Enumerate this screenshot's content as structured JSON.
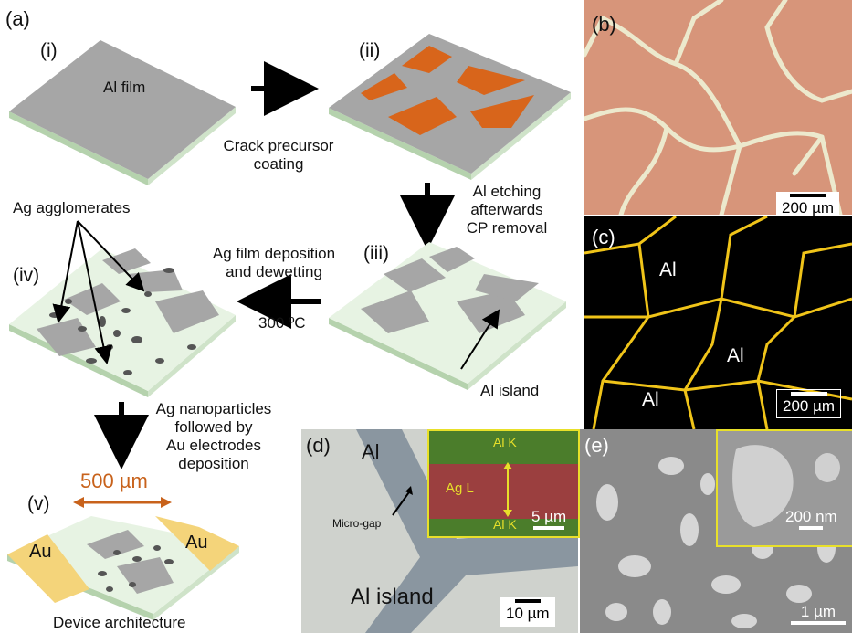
{
  "panel_a": {
    "tag": "(a)",
    "steps": {
      "i": "(i)",
      "ii": "(ii)",
      "iii": "(iii)",
      "iv": "(iv)",
      "v": "(v)"
    },
    "al_film": "Al film",
    "crack_precursor": [
      "Crack precursor",
      "coating"
    ],
    "al_etching": [
      "Al etching",
      "afterwards",
      "CP removal"
    ],
    "ag_agglomerates": "Ag agglomerates",
    "ag_film": [
      "Ag film deposition",
      "and dewetting"
    ],
    "temperature": "300 ºC",
    "al_island": "Al island",
    "ag_nanoparticles": [
      "Ag nanoparticles",
      "followed by",
      "Au electrodes",
      "deposition"
    ],
    "distance": "500 µm",
    "au_left": "Au",
    "au_right": "Au",
    "device_architecture": "Device architecture"
  },
  "panel_b": {
    "tag": "(b)",
    "scale": "200 µm"
  },
  "panel_c": {
    "tag": "(c)",
    "labels": [
      "Al",
      "Al",
      "Al"
    ],
    "scale": "200 µm"
  },
  "panel_d": {
    "tag": "(d)",
    "al": "Al",
    "micro_gap": "Micro-gap",
    "al_island": "Al island",
    "scale": "10 µm",
    "inset": {
      "al_k_top": "Al K",
      "ag_l": "Ag L",
      "al_k_bottom": "Al K",
      "scale": "5 µm"
    }
  },
  "panel_e": {
    "tag": "(e)",
    "inset_scale": "200 nm",
    "scale": "1 µm"
  },
  "colors": {
    "substrate_top": "#e7f3e3",
    "substrate_side": "#b5d2ad",
    "al_gray": "#a6a6a6",
    "crack_orange": "#d8651b",
    "au_gold": "#f4d47a",
    "arrow_orange": "#c8621b",
    "inset_border": "#e8e02a",
    "micro_yellow": "#f0c419"
  }
}
